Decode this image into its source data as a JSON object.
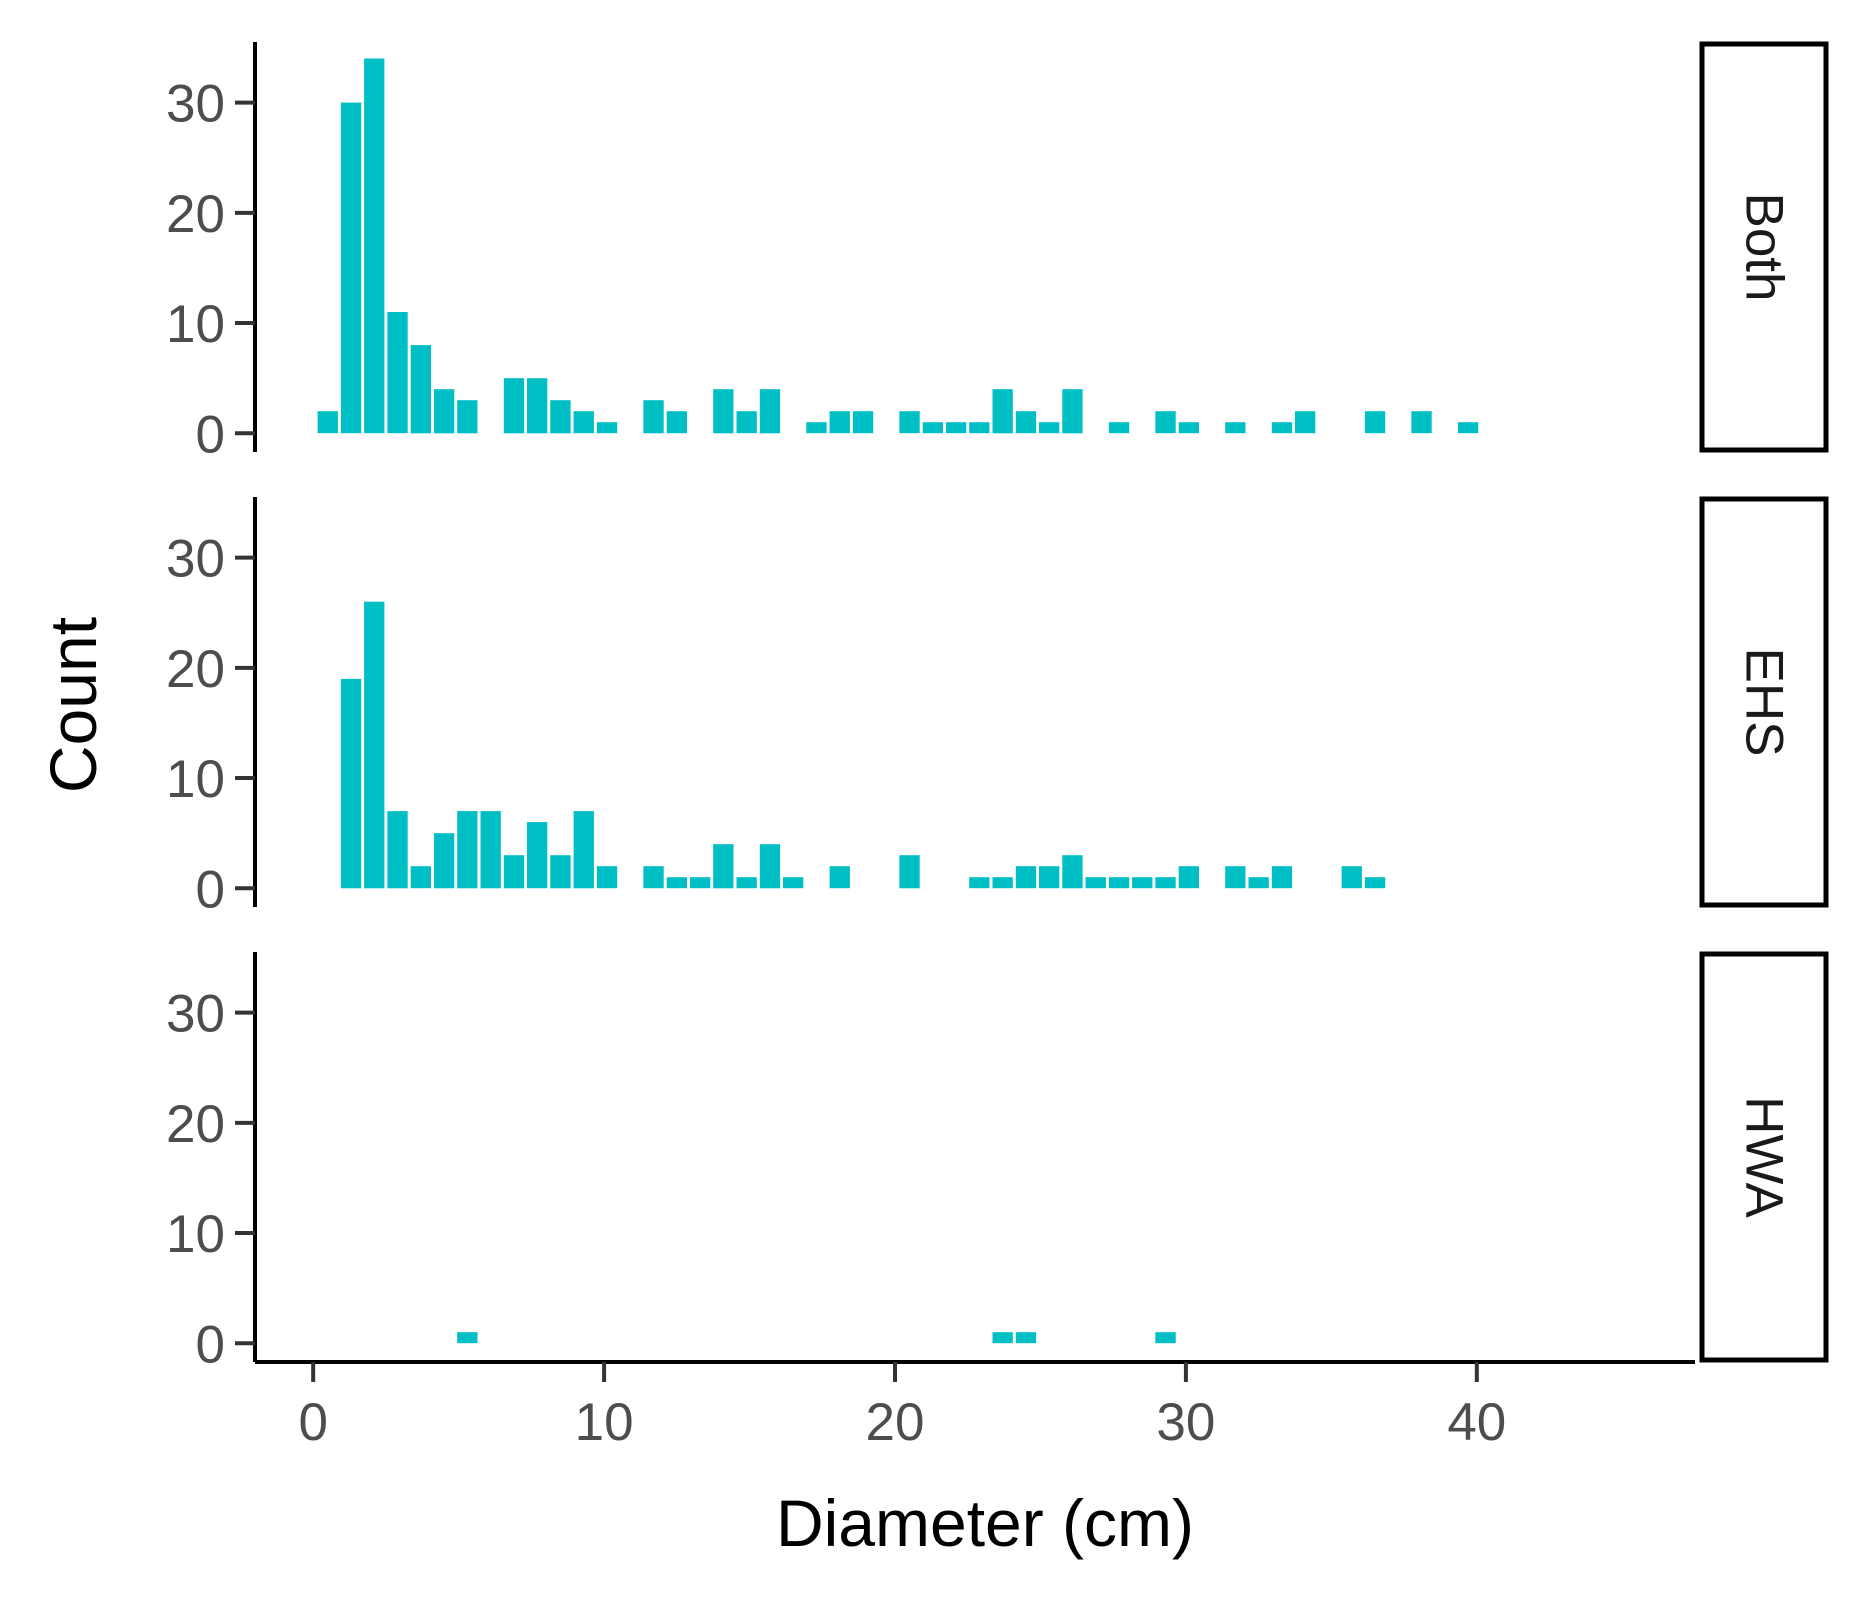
{
  "chart_data": {
    "type": "bar",
    "xlabel": "Diameter (cm)",
    "ylabel": "Count",
    "x_ticks": [
      0,
      10,
      20,
      30,
      40
    ],
    "y_ticks": [
      0,
      10,
      20,
      30
    ],
    "xlim": [
      -2,
      47.5
    ],
    "ylim": [
      -1.7,
      35.5
    ],
    "bar_color": "#00BFC4",
    "bin_width": 0.8,
    "facets": [
      {
        "name": "Both",
        "bars": [
          {
            "x": 0.1,
            "y": 2
          },
          {
            "x": 0.9,
            "y": 30
          },
          {
            "x": 1.7,
            "y": 34
          },
          {
            "x": 2.5,
            "y": 11
          },
          {
            "x": 3.3,
            "y": 8
          },
          {
            "x": 4.1,
            "y": 4
          },
          {
            "x": 4.9,
            "y": 3
          },
          {
            "x": 6.5,
            "y": 5
          },
          {
            "x": 7.3,
            "y": 5
          },
          {
            "x": 8.1,
            "y": 3
          },
          {
            "x": 8.9,
            "y": 2
          },
          {
            "x": 9.7,
            "y": 1
          },
          {
            "x": 11.3,
            "y": 3
          },
          {
            "x": 12.1,
            "y": 2
          },
          {
            "x": 13.7,
            "y": 4
          },
          {
            "x": 14.5,
            "y": 2
          },
          {
            "x": 15.3,
            "y": 4
          },
          {
            "x": 16.9,
            "y": 1
          },
          {
            "x": 17.7,
            "y": 2
          },
          {
            "x": 18.5,
            "y": 2
          },
          {
            "x": 20.1,
            "y": 2
          },
          {
            "x": 20.9,
            "y": 1
          },
          {
            "x": 21.7,
            "y": 1
          },
          {
            "x": 22.5,
            "y": 1
          },
          {
            "x": 23.3,
            "y": 4
          },
          {
            "x": 24.1,
            "y": 2
          },
          {
            "x": 24.9,
            "y": 1
          },
          {
            "x": 25.7,
            "y": 4
          },
          {
            "x": 27.3,
            "y": 1
          },
          {
            "x": 28.9,
            "y": 2
          },
          {
            "x": 29.7,
            "y": 1
          },
          {
            "x": 31.3,
            "y": 1
          },
          {
            "x": 32.9,
            "y": 1
          },
          {
            "x": 33.7,
            "y": 2
          },
          {
            "x": 36.1,
            "y": 2
          },
          {
            "x": 37.7,
            "y": 2
          },
          {
            "x": 39.3,
            "y": 1
          }
        ]
      },
      {
        "name": "EHS",
        "bars": [
          {
            "x": 0.9,
            "y": 19
          },
          {
            "x": 1.7,
            "y": 26
          },
          {
            "x": 2.5,
            "y": 7
          },
          {
            "x": 3.3,
            "y": 2
          },
          {
            "x": 4.1,
            "y": 5
          },
          {
            "x": 4.9,
            "y": 7
          },
          {
            "x": 5.7,
            "y": 7
          },
          {
            "x": 6.5,
            "y": 3
          },
          {
            "x": 7.3,
            "y": 6
          },
          {
            "x": 8.1,
            "y": 3
          },
          {
            "x": 8.9,
            "y": 7
          },
          {
            "x": 9.7,
            "y": 2
          },
          {
            "x": 11.3,
            "y": 2
          },
          {
            "x": 12.1,
            "y": 1
          },
          {
            "x": 12.9,
            "y": 1
          },
          {
            "x": 13.7,
            "y": 4
          },
          {
            "x": 14.5,
            "y": 1
          },
          {
            "x": 15.3,
            "y": 4
          },
          {
            "x": 16.1,
            "y": 1
          },
          {
            "x": 17.7,
            "y": 2
          },
          {
            "x": 20.1,
            "y": 3
          },
          {
            "x": 22.5,
            "y": 1
          },
          {
            "x": 23.3,
            "y": 1
          },
          {
            "x": 24.1,
            "y": 2
          },
          {
            "x": 24.9,
            "y": 2
          },
          {
            "x": 25.7,
            "y": 3
          },
          {
            "x": 26.5,
            "y": 1
          },
          {
            "x": 27.3,
            "y": 1
          },
          {
            "x": 28.1,
            "y": 1
          },
          {
            "x": 28.9,
            "y": 1
          },
          {
            "x": 29.7,
            "y": 2
          },
          {
            "x": 31.3,
            "y": 2
          },
          {
            "x": 32.1,
            "y": 1
          },
          {
            "x": 32.9,
            "y": 2
          },
          {
            "x": 35.3,
            "y": 2
          },
          {
            "x": 36.1,
            "y": 1
          }
        ]
      },
      {
        "name": "HWA",
        "bars": [
          {
            "x": 4.9,
            "y": 1
          },
          {
            "x": 23.3,
            "y": 1
          },
          {
            "x": 24.1,
            "y": 1
          },
          {
            "x": 28.9,
            "y": 1
          }
        ]
      }
    ]
  }
}
